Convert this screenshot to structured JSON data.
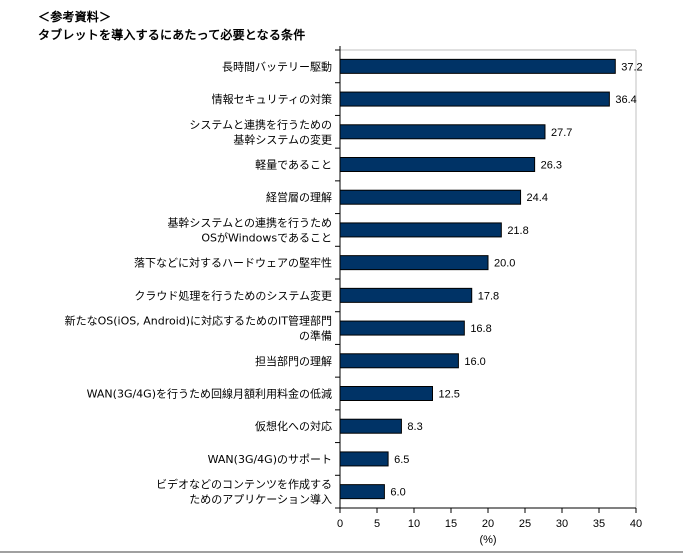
{
  "header": {
    "bracket_title": "＜参考資料＞",
    "main_title": "タブレットを導入するにあたって必要となる条件"
  },
  "chart_data": {
    "type": "bar",
    "orientation": "horizontal",
    "title": "タブレットを導入するにあたって必要となる条件",
    "xlabel": "(%)",
    "ylabel": "",
    "xlim": [
      0,
      40
    ],
    "xticks": [
      0,
      5,
      10,
      15,
      20,
      25,
      30,
      35,
      40
    ],
    "grid": false,
    "legend": "none",
    "bar_color": "#003366",
    "categories": [
      [
        "長時間バッテリー駆動"
      ],
      [
        "情報セキュリティの対策"
      ],
      [
        "システムと連携を行うための",
        "基幹システムの変更"
      ],
      [
        "軽量であること"
      ],
      [
        "経営層の理解"
      ],
      [
        "基幹システムとの連携を行うため",
        "OSがWindowsであること"
      ],
      [
        "落下などに対するハードウェアの堅牢性"
      ],
      [
        "クラウド処理を行うためのシステム変更"
      ],
      [
        "新たなOS(iOS, Android)に対応するためのIT管理部門",
        "の準備"
      ],
      [
        "担当部門の理解"
      ],
      [
        "WAN(3G/4G)を行うため回線月額利用料金の低減"
      ],
      [
        "仮想化への対応"
      ],
      [
        "WAN(3G/4G)のサポート"
      ],
      [
        "ビデオなどのコンテンツを作成する",
        "ためのアプリケーション導入"
      ]
    ],
    "values": [
      37.2,
      36.4,
      27.7,
      26.3,
      24.4,
      21.8,
      20.0,
      17.8,
      16.8,
      16.0,
      12.5,
      8.3,
      6.5,
      6.0
    ],
    "value_labels": [
      "37.2",
      "36.4",
      "27.7",
      "26.3",
      "24.4",
      "21.8",
      "20.0",
      "17.8",
      "16.8",
      "16.0",
      "12.5",
      "8.3",
      "6.5",
      "6.0"
    ]
  }
}
